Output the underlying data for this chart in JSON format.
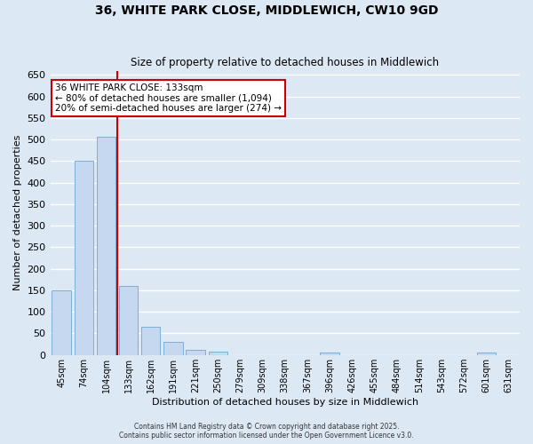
{
  "title": "36, WHITE PARK CLOSE, MIDDLEWICH, CW10 9GD",
  "subtitle": "Size of property relative to detached houses in Middlewich",
  "xlabel": "Distribution of detached houses by size in Middlewich",
  "ylabel": "Number of detached properties",
  "bin_labels": [
    "45sqm",
    "74sqm",
    "104sqm",
    "133sqm",
    "162sqm",
    "191sqm",
    "221sqm",
    "250sqm",
    "279sqm",
    "309sqm",
    "338sqm",
    "367sqm",
    "396sqm",
    "426sqm",
    "455sqm",
    "484sqm",
    "514sqm",
    "543sqm",
    "572sqm",
    "601sqm",
    "631sqm"
  ],
  "bar_values": [
    150,
    450,
    507,
    160,
    65,
    30,
    12,
    7,
    0,
    0,
    0,
    0,
    5,
    0,
    0,
    0,
    0,
    0,
    0,
    5,
    0
  ],
  "bar_color": "#c5d8f0",
  "bar_edge_color": "#7aafd4",
  "vline_x_index": 3,
  "vline_color": "#cc0000",
  "annotation_text": "36 WHITE PARK CLOSE: 133sqm\n← 80% of detached houses are smaller (1,094)\n20% of semi-detached houses are larger (274) →",
  "annotation_box_color": "#ffffff",
  "annotation_box_edge": "#cc0000",
  "ylim": [
    0,
    660
  ],
  "yticks": [
    0,
    50,
    100,
    150,
    200,
    250,
    300,
    350,
    400,
    450,
    500,
    550,
    600,
    650
  ],
  "background_color": "#dde8f5",
  "grid_color": "#ffffff",
  "footer_line1": "Contains HM Land Registry data © Crown copyright and database right 2025.",
  "footer_line2": "Contains public sector information licensed under the Open Government Licence v3.0."
}
